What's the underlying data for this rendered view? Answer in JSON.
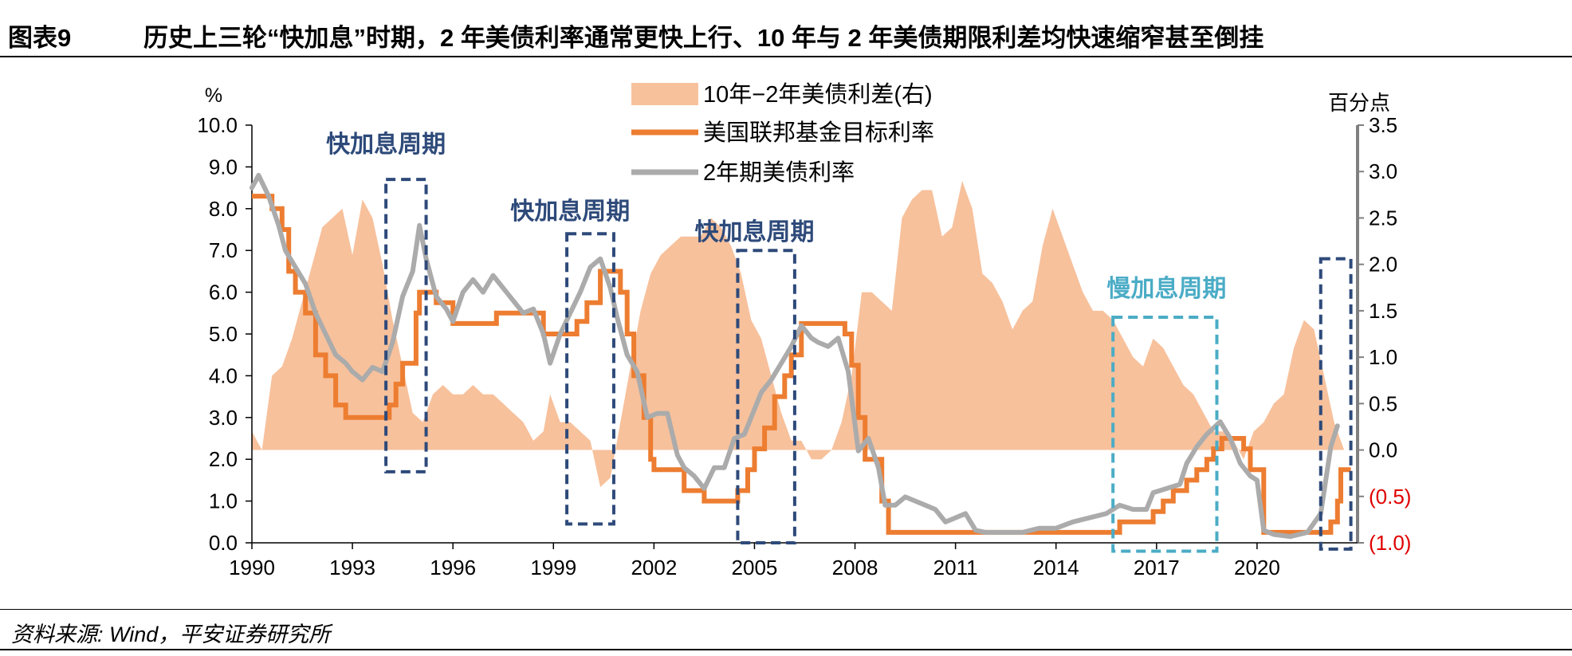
{
  "header": {
    "figure_number": "图表9",
    "title": "历史上三轮“快加息”时期，2 年美债利率通常更快上行、10 年与 2 年美债期限利差均快速缩窄甚至倒挂"
  },
  "source": "资料来源: Wind，平安证券研究所",
  "colors": {
    "spread": "#F7C19C",
    "fed_funds": "#ED7D31",
    "two_year": "#ABABAB",
    "fast_box": "#2E4A7A",
    "slow_box": "#4BACC6",
    "negative_tick": "#E00000"
  },
  "chart_data": {
    "type": "line",
    "title": "历史上三轮“快加息”时期，2 年美债利率通常更快上行、10 年与 2 年美债期限利差均快速缩窄甚至倒挂",
    "xlabel": "",
    "ylabel": "%",
    "ylabel_right": "百分点",
    "xlim": [
      1990,
      2023
    ],
    "ylim": [
      0,
      10
    ],
    "ylim_right": [
      -1.0,
      3.5
    ],
    "x_ticks": [
      1990,
      1993,
      1996,
      1999,
      2002,
      2005,
      2008,
      2011,
      2014,
      2017,
      2020
    ],
    "y_ticks": [
      0.0,
      1.0,
      2.0,
      3.0,
      4.0,
      5.0,
      6.0,
      7.0,
      8.0,
      9.0,
      10.0
    ],
    "y_tick_labels": [
      "0.0",
      "1.0",
      "2.0",
      "3.0",
      "4.0",
      "5.0",
      "6.0",
      "7.0",
      "8.0",
      "9.0",
      "10.0"
    ],
    "y_right_ticks": [
      -1.0,
      -0.5,
      0.0,
      0.5,
      1.0,
      1.5,
      2.0,
      2.5,
      3.0,
      3.5
    ],
    "y_right_tick_labels": [
      "(1.0)",
      "(0.5)",
      "0.0",
      "0.5",
      "1.0",
      "1.5",
      "2.0",
      "2.5",
      "3.0",
      "3.5"
    ],
    "legend_position": "top-center",
    "series": [
      {
        "name": "10年−2年美债利差(右)",
        "axis": "right",
        "kind": "area",
        "points": [
          [
            1990.0,
            0.2
          ],
          [
            1990.3,
            0.0
          ],
          [
            1990.6,
            0.8
          ],
          [
            1990.9,
            0.9
          ],
          [
            1991.2,
            1.2
          ],
          [
            1991.5,
            1.6
          ],
          [
            1991.8,
            2.0
          ],
          [
            1992.1,
            2.4
          ],
          [
            1992.4,
            2.5
          ],
          [
            1992.7,
            2.6
          ],
          [
            1993.0,
            2.1
          ],
          [
            1993.3,
            2.7
          ],
          [
            1993.6,
            2.5
          ],
          [
            1993.9,
            2.0
          ],
          [
            1994.2,
            1.4
          ],
          [
            1994.5,
            0.9
          ],
          [
            1994.8,
            0.4
          ],
          [
            1995.1,
            0.3
          ],
          [
            1995.4,
            0.6
          ],
          [
            1995.7,
            0.7
          ],
          [
            1996.0,
            0.6
          ],
          [
            1996.3,
            0.6
          ],
          [
            1996.6,
            0.7
          ],
          [
            1996.9,
            0.6
          ],
          [
            1997.2,
            0.6
          ],
          [
            1997.5,
            0.5
          ],
          [
            1997.8,
            0.4
          ],
          [
            1998.1,
            0.3
          ],
          [
            1998.4,
            0.1
          ],
          [
            1998.7,
            0.2
          ],
          [
            1998.9,
            0.6
          ],
          [
            1999.2,
            0.3
          ],
          [
            1999.5,
            0.3
          ],
          [
            1999.8,
            0.2
          ],
          [
            2000.1,
            0.1
          ],
          [
            2000.4,
            -0.4
          ],
          [
            2000.7,
            -0.3
          ],
          [
            2001.0,
            0.3
          ],
          [
            2001.3,
            0.9
          ],
          [
            2001.6,
            1.5
          ],
          [
            2001.9,
            1.9
          ],
          [
            2002.2,
            2.1
          ],
          [
            2002.5,
            2.2
          ],
          [
            2002.8,
            2.3
          ],
          [
            2003.1,
            2.3
          ],
          [
            2003.4,
            2.3
          ],
          [
            2003.7,
            2.5
          ],
          [
            2004.0,
            2.4
          ],
          [
            2004.3,
            2.2
          ],
          [
            2004.6,
            1.9
          ],
          [
            2004.9,
            1.4
          ],
          [
            2005.2,
            1.2
          ],
          [
            2005.5,
            0.8
          ],
          [
            2005.8,
            0.4
          ],
          [
            2006.1,
            0.1
          ],
          [
            2006.4,
            0.1
          ],
          [
            2006.7,
            -0.1
          ],
          [
            2007.0,
            -0.1
          ],
          [
            2007.3,
            0.0
          ],
          [
            2007.6,
            0.3
          ],
          [
            2007.9,
            0.8
          ],
          [
            2008.2,
            1.7
          ],
          [
            2008.5,
            1.7
          ],
          [
            2008.8,
            1.6
          ],
          [
            2009.1,
            1.5
          ],
          [
            2009.4,
            2.5
          ],
          [
            2009.7,
            2.7
          ],
          [
            2010.0,
            2.8
          ],
          [
            2010.3,
            2.8
          ],
          [
            2010.6,
            2.3
          ],
          [
            2010.9,
            2.4
          ],
          [
            2011.2,
            2.9
          ],
          [
            2011.5,
            2.6
          ],
          [
            2011.8,
            1.9
          ],
          [
            2012.1,
            1.8
          ],
          [
            2012.4,
            1.6
          ],
          [
            2012.7,
            1.3
          ],
          [
            2013.0,
            1.5
          ],
          [
            2013.3,
            1.6
          ],
          [
            2013.6,
            2.2
          ],
          [
            2013.9,
            2.6
          ],
          [
            2014.2,
            2.3
          ],
          [
            2014.5,
            2.0
          ],
          [
            2014.8,
            1.7
          ],
          [
            2015.1,
            1.5
          ],
          [
            2015.4,
            1.5
          ],
          [
            2015.7,
            1.4
          ],
          [
            2016.0,
            1.2
          ],
          [
            2016.3,
            1.0
          ],
          [
            2016.6,
            0.9
          ],
          [
            2016.9,
            1.2
          ],
          [
            2017.2,
            1.1
          ],
          [
            2017.5,
            0.9
          ],
          [
            2017.8,
            0.7
          ],
          [
            2018.1,
            0.6
          ],
          [
            2018.4,
            0.4
          ],
          [
            2018.7,
            0.2
          ],
          [
            2019.0,
            0.2
          ],
          [
            2019.3,
            0.1
          ],
          [
            2019.6,
            -0.1
          ],
          [
            2019.9,
            0.2
          ],
          [
            2020.2,
            0.3
          ],
          [
            2020.5,
            0.5
          ],
          [
            2020.8,
            0.6
          ],
          [
            2021.1,
            1.1
          ],
          [
            2021.4,
            1.4
          ],
          [
            2021.7,
            1.3
          ],
          [
            2022.0,
            0.8
          ],
          [
            2022.3,
            0.3
          ],
          [
            2022.6,
            0.0
          ]
        ]
      },
      {
        "name": "美国联邦基金目标利率",
        "axis": "left",
        "kind": "step",
        "points": [
          [
            1990.0,
            8.3
          ],
          [
            1990.6,
            8.0
          ],
          [
            1990.9,
            7.5
          ],
          [
            1991.1,
            6.5
          ],
          [
            1991.3,
            6.0
          ],
          [
            1991.6,
            5.5
          ],
          [
            1991.9,
            4.5
          ],
          [
            1992.2,
            4.0
          ],
          [
            1992.5,
            3.3
          ],
          [
            1992.8,
            3.0
          ],
          [
            1994.1,
            3.3
          ],
          [
            1994.3,
            3.8
          ],
          [
            1994.5,
            4.3
          ],
          [
            1994.9,
            5.5
          ],
          [
            1995.0,
            6.0
          ],
          [
            1995.5,
            5.75
          ],
          [
            1996.0,
            5.25
          ],
          [
            1997.3,
            5.5
          ],
          [
            1998.7,
            5.0
          ],
          [
            1999.5,
            5.0
          ],
          [
            1999.7,
            5.3
          ],
          [
            2000.0,
            5.75
          ],
          [
            2000.4,
            6.5
          ],
          [
            2001.0,
            6.0
          ],
          [
            2001.2,
            5.0
          ],
          [
            2001.4,
            4.0
          ],
          [
            2001.7,
            3.0
          ],
          [
            2001.9,
            2.0
          ],
          [
            2002.0,
            1.75
          ],
          [
            2002.9,
            1.25
          ],
          [
            2003.5,
            1.0
          ],
          [
            2004.5,
            1.25
          ],
          [
            2004.8,
            1.75
          ],
          [
            2005.0,
            2.25
          ],
          [
            2005.3,
            2.75
          ],
          [
            2005.6,
            3.5
          ],
          [
            2005.9,
            4.0
          ],
          [
            2006.1,
            4.5
          ],
          [
            2006.4,
            5.25
          ],
          [
            2007.7,
            5.0
          ],
          [
            2007.9,
            4.25
          ],
          [
            2008.1,
            3.0
          ],
          [
            2008.3,
            2.0
          ],
          [
            2008.8,
            1.0
          ],
          [
            2009.0,
            0.25
          ],
          [
            2015.9,
            0.5
          ],
          [
            2016.9,
            0.75
          ],
          [
            2017.2,
            1.0
          ],
          [
            2017.5,
            1.25
          ],
          [
            2017.9,
            1.5
          ],
          [
            2018.2,
            1.75
          ],
          [
            2018.5,
            2.0
          ],
          [
            2018.7,
            2.25
          ],
          [
            2018.95,
            2.5
          ],
          [
            2019.6,
            2.25
          ],
          [
            2019.8,
            1.75
          ],
          [
            2020.2,
            0.25
          ],
          [
            2022.2,
            0.5
          ],
          [
            2022.4,
            1.0
          ],
          [
            2022.5,
            1.75
          ]
        ]
      },
      {
        "name": "2年期美债利率",
        "axis": "left",
        "kind": "line",
        "points": [
          [
            1990.0,
            8.5
          ],
          [
            1990.2,
            8.8
          ],
          [
            1990.5,
            8.3
          ],
          [
            1990.8,
            7.6
          ],
          [
            1991.0,
            7.0
          ],
          [
            1991.3,
            6.6
          ],
          [
            1991.6,
            6.2
          ],
          [
            1991.9,
            5.5
          ],
          [
            1992.2,
            5.0
          ],
          [
            1992.5,
            4.5
          ],
          [
            1992.8,
            4.3
          ],
          [
            1993.0,
            4.1
          ],
          [
            1993.3,
            3.9
          ],
          [
            1993.6,
            4.2
          ],
          [
            1993.9,
            4.1
          ],
          [
            1994.2,
            4.8
          ],
          [
            1994.5,
            5.9
          ],
          [
            1994.8,
            6.5
          ],
          [
            1995.0,
            7.6
          ],
          [
            1995.2,
            6.8
          ],
          [
            1995.5,
            5.9
          ],
          [
            1995.8,
            5.6
          ],
          [
            1996.0,
            5.3
          ],
          [
            1996.3,
            6.0
          ],
          [
            1996.6,
            6.3
          ],
          [
            1996.9,
            6.0
          ],
          [
            1997.2,
            6.4
          ],
          [
            1997.5,
            6.1
          ],
          [
            1997.8,
            5.8
          ],
          [
            1998.1,
            5.5
          ],
          [
            1998.4,
            5.6
          ],
          [
            1998.7,
            5.0
          ],
          [
            1998.9,
            4.3
          ],
          [
            1999.2,
            5.0
          ],
          [
            1999.5,
            5.5
          ],
          [
            1999.8,
            6.0
          ],
          [
            2000.1,
            6.6
          ],
          [
            2000.4,
            6.8
          ],
          [
            2000.7,
            6.1
          ],
          [
            2000.9,
            5.4
          ],
          [
            2001.2,
            4.5
          ],
          [
            2001.5,
            4.1
          ],
          [
            2001.8,
            3.0
          ],
          [
            2002.1,
            3.1
          ],
          [
            2002.4,
            3.1
          ],
          [
            2002.7,
            2.1
          ],
          [
            2002.9,
            1.8
          ],
          [
            2003.2,
            1.6
          ],
          [
            2003.5,
            1.3
          ],
          [
            2003.8,
            1.8
          ],
          [
            2004.1,
            1.8
          ],
          [
            2004.4,
            2.5
          ],
          [
            2004.7,
            2.6
          ],
          [
            2004.9,
            3.0
          ],
          [
            2005.2,
            3.6
          ],
          [
            2005.5,
            3.9
          ],
          [
            2005.8,
            4.3
          ],
          [
            2006.1,
            4.7
          ],
          [
            2006.4,
            5.2
          ],
          [
            2006.7,
            4.9
          ],
          [
            2006.9,
            4.8
          ],
          [
            2007.2,
            4.7
          ],
          [
            2007.5,
            4.9
          ],
          [
            2007.8,
            4.1
          ],
          [
            2008.1,
            2.2
          ],
          [
            2008.4,
            2.5
          ],
          [
            2008.7,
            1.8
          ],
          [
            2008.9,
            0.9
          ],
          [
            2009.2,
            0.9
          ],
          [
            2009.5,
            1.1
          ],
          [
            2009.8,
            1.0
          ],
          [
            2010.1,
            0.9
          ],
          [
            2010.4,
            0.8
          ],
          [
            2010.7,
            0.5
          ],
          [
            2011.0,
            0.6
          ],
          [
            2011.3,
            0.7
          ],
          [
            2011.6,
            0.3
          ],
          [
            2011.9,
            0.25
          ],
          [
            2012.5,
            0.25
          ],
          [
            2013.0,
            0.25
          ],
          [
            2013.5,
            0.35
          ],
          [
            2014.0,
            0.35
          ],
          [
            2014.5,
            0.5
          ],
          [
            2015.0,
            0.6
          ],
          [
            2015.5,
            0.7
          ],
          [
            2015.9,
            0.9
          ],
          [
            2016.3,
            0.8
          ],
          [
            2016.7,
            0.8
          ],
          [
            2016.9,
            1.2
          ],
          [
            2017.3,
            1.3
          ],
          [
            2017.7,
            1.4
          ],
          [
            2017.9,
            1.9
          ],
          [
            2018.2,
            2.3
          ],
          [
            2018.5,
            2.6
          ],
          [
            2018.9,
            2.9
          ],
          [
            2019.2,
            2.5
          ],
          [
            2019.5,
            1.9
          ],
          [
            2019.8,
            1.6
          ],
          [
            2020.0,
            1.5
          ],
          [
            2020.2,
            0.3
          ],
          [
            2020.5,
            0.2
          ],
          [
            2021.0,
            0.15
          ],
          [
            2021.5,
            0.25
          ],
          [
            2021.9,
            0.7
          ],
          [
            2022.2,
            2.3
          ],
          [
            2022.4,
            2.8
          ]
        ]
      }
    ],
    "annotations": [
      {
        "label": "快加息周期",
        "type": "fast",
        "x_range": [
          1994.0,
          1995.2
        ],
        "y_range": [
          1.7,
          8.7
        ],
        "label_x": 1994.0,
        "label_y": 9.35
      },
      {
        "label": "快加息周期",
        "type": "fast",
        "x_range": [
          1999.4,
          2000.8
        ],
        "y_range": [
          0.45,
          7.4
        ],
        "label_x": 1999.5,
        "label_y": 7.75
      },
      {
        "label": "快加息周期",
        "type": "fast",
        "x_range": [
          2004.5,
          2006.2
        ],
        "y_range": [
          0.0,
          7.0
        ],
        "label_x": 2005.0,
        "label_y": 7.25
      },
      {
        "label": "慢加息周期",
        "type": "slow",
        "x_range": [
          2015.7,
          2018.8
        ],
        "y_range": [
          -0.2,
          5.4
        ],
        "label_x": 2017.3,
        "label_y": 5.9
      },
      {
        "label": "",
        "type": "fast",
        "x_range": [
          2021.9,
          2022.8
        ],
        "y_range": [
          -0.15,
          6.8
        ],
        "label_x": 2022.3,
        "label_y": 7.0
      }
    ]
  }
}
